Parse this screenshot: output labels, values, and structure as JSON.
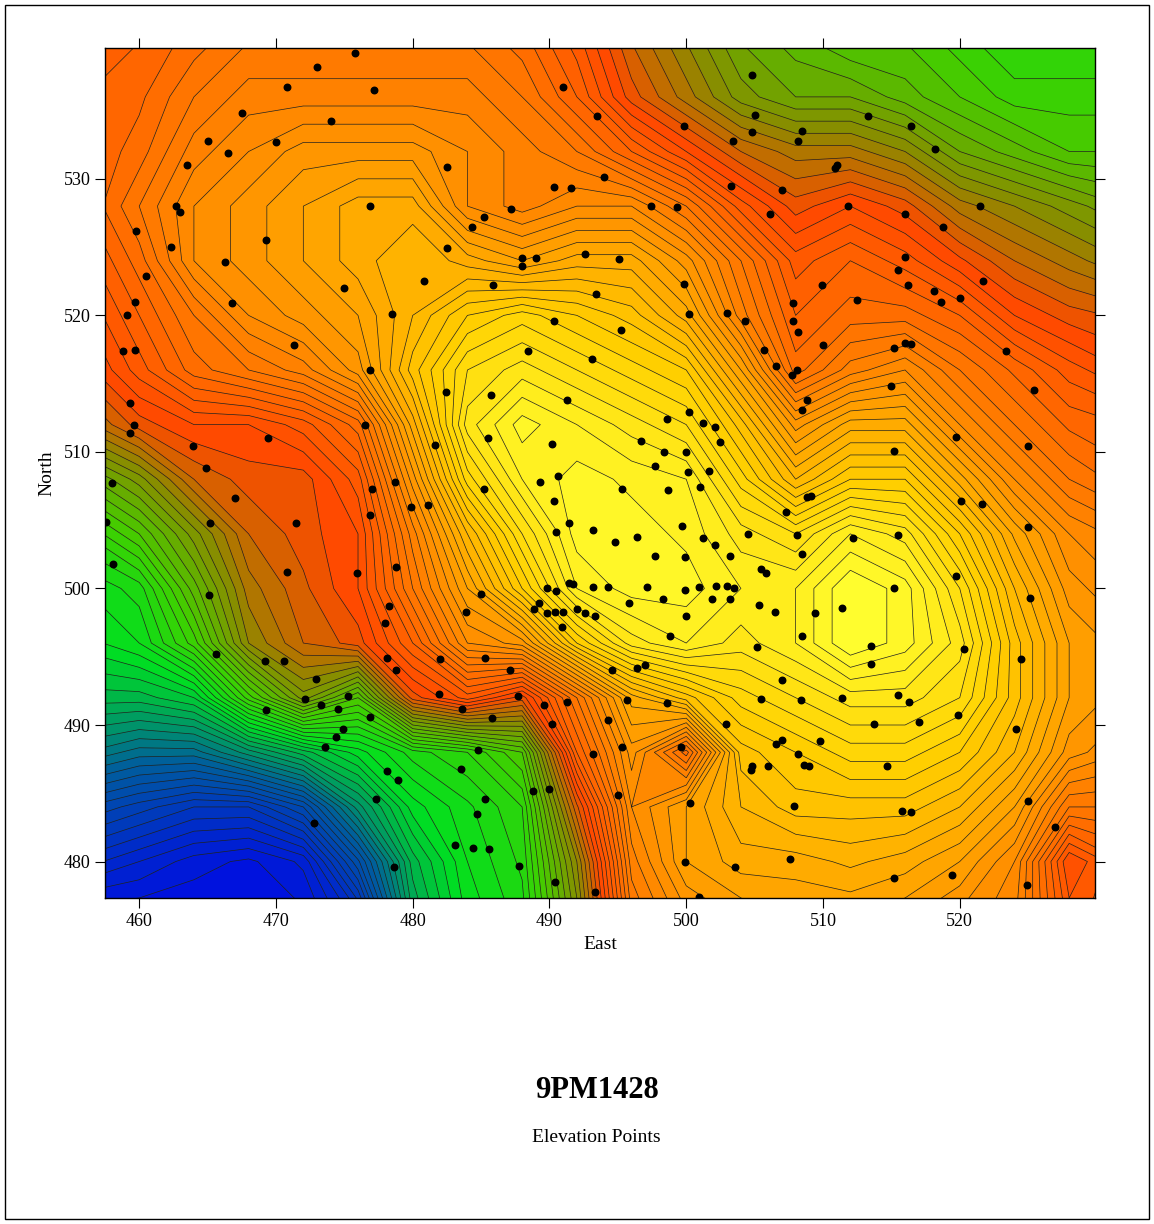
{
  "chart_data": {
    "type": "contour",
    "title": "9PM1428",
    "subtitle": "Elevation Points",
    "xlabel": "East",
    "ylabel": "North",
    "xlim": [
      457.5,
      529.9
    ],
    "ylim": [
      477.3,
      539.6
    ],
    "xticks": [
      460,
      470,
      480,
      490,
      500,
      510,
      520
    ],
    "yticks": [
      480,
      490,
      500,
      510,
      520,
      530
    ],
    "grid": false,
    "grid_x": [
      456,
      460,
      464,
      468,
      472,
      476,
      480,
      484,
      488,
      492,
      496,
      500,
      504,
      508,
      512,
      516,
      520,
      524,
      528,
      532
    ],
    "grid_y": [
      476,
      480,
      484,
      488,
      492,
      496,
      500,
      504,
      508,
      512,
      516,
      520,
      524,
      528,
      532,
      536,
      540
    ],
    "z": [
      [
        2,
        2,
        2,
        2,
        3,
        8,
        26,
        33,
        36,
        48,
        66,
        71,
        73,
        74,
        74,
        73,
        71,
        69,
        60,
        62
      ],
      [
        8,
        6,
        4,
        3,
        5,
        15,
        28,
        34,
        37,
        50,
        68,
        74,
        76,
        76,
        77,
        76,
        74,
        70,
        58,
        62
      ],
      [
        14,
        12,
        10,
        10,
        14,
        24,
        32,
        35,
        38,
        55,
        70,
        74,
        78,
        80,
        80,
        80,
        78,
        74,
        66,
        66
      ],
      [
        22,
        20,
        20,
        24,
        28,
        32,
        36,
        38,
        42,
        62,
        72,
        64,
        80,
        82,
        84,
        84,
        82,
        78,
        72,
        70
      ],
      [
        28,
        28,
        30,
        40,
        48,
        42,
        56,
        60,
        56,
        66,
        76,
        80,
        84,
        86,
        88,
        88,
        86,
        80,
        74,
        72
      ],
      [
        32,
        34,
        40,
        50,
        54,
        56,
        62,
        70,
        72,
        82,
        88,
        90,
        88,
        90,
        94,
        92,
        88,
        80,
        74,
        72
      ],
      [
        34,
        36,
        44,
        52,
        55,
        58,
        66,
        74,
        82,
        90,
        92,
        92,
        90,
        90,
        94,
        92,
        86,
        78,
        72,
        70
      ],
      [
        38,
        42,
        48,
        54,
        56,
        58,
        68,
        78,
        86,
        92,
        92,
        91,
        88,
        86,
        90,
        88,
        82,
        75,
        70,
        68
      ],
      [
        44,
        48,
        54,
        56,
        56,
        60,
        72,
        84,
        90,
        92,
        91,
        90,
        84,
        78,
        82,
        82,
        76,
        70,
        66,
        64
      ],
      [
        52,
        56,
        58,
        58,
        60,
        64,
        76,
        88,
        92,
        90,
        88,
        86,
        80,
        72,
        76,
        76,
        70,
        66,
        63,
        62
      ],
      [
        56,
        60,
        64,
        66,
        68,
        72,
        80,
        86,
        88,
        86,
        84,
        82,
        74,
        64,
        68,
        70,
        66,
        63,
        60,
        58
      ],
      [
        58,
        62,
        66,
        70,
        72,
        74,
        78,
        82,
        84,
        82,
        80,
        76,
        68,
        62,
        64,
        64,
        62,
        58,
        56,
        55
      ],
      [
        60,
        64,
        70,
        72,
        74,
        76,
        78,
        76,
        74,
        76,
        76,
        72,
        66,
        60,
        62,
        60,
        57,
        54,
        52,
        50
      ],
      [
        62,
        66,
        70,
        72,
        74,
        76,
        76,
        70,
        68,
        70,
        70,
        66,
        60,
        56,
        58,
        56,
        52,
        50,
        48,
        46
      ],
      [
        62,
        64,
        68,
        70,
        72,
        72,
        72,
        70,
        68,
        66,
        62,
        58,
        54,
        52,
        52,
        50,
        46,
        44,
        42,
        42
      ],
      [
        62,
        63,
        66,
        68,
        68,
        68,
        68,
        68,
        66,
        62,
        56,
        52,
        48,
        46,
        46,
        44,
        42,
        40,
        40,
        40
      ],
      [
        62,
        62,
        64,
        66,
        66,
        66,
        66,
        66,
        64,
        60,
        54,
        50,
        46,
        44,
        42,
        42,
        40,
        38,
        38,
        38
      ]
    ],
    "points": [
      [
        475.8,
        539.2
      ],
      [
        473,
        538.2
      ],
      [
        477.2,
        536.5
      ],
      [
        470.8,
        536.7
      ],
      [
        467.5,
        534.8
      ],
      [
        474,
        534.2
      ],
      [
        465,
        532.8
      ],
      [
        470,
        532.7
      ],
      [
        466.5,
        531.9
      ],
      [
        463.5,
        531
      ],
      [
        491,
        536.7
      ],
      [
        493.5,
        534.6
      ],
      [
        504.8,
        537.6
      ],
      [
        505,
        534.7
      ],
      [
        504.8,
        533.4
      ],
      [
        503.4,
        532.8
      ],
      [
        499.8,
        533.9
      ],
      [
        508.5,
        533.5
      ],
      [
        508.2,
        532.8
      ],
      [
        513.3,
        534.6
      ],
      [
        516.4,
        533.9
      ],
      [
        518.2,
        532.2
      ],
      [
        511,
        531
      ],
      [
        510.9,
        530.8
      ],
      [
        482.5,
        530.9
      ],
      [
        490.3,
        529.4
      ],
      [
        491.6,
        529.3
      ],
      [
        494,
        530.1
      ],
      [
        497.4,
        528
      ],
      [
        499.3,
        527.9
      ],
      [
        503.3,
        529.5
      ],
      [
        507,
        529.2
      ],
      [
        506.1,
        527.4
      ],
      [
        511.8,
        528
      ],
      [
        516,
        527.4
      ],
      [
        518.8,
        526.5
      ],
      [
        521.5,
        528
      ],
      [
        462.7,
        528
      ],
      [
        463,
        527.6
      ],
      [
        476.9,
        528
      ],
      [
        485.2,
        527.2
      ],
      [
        484.3,
        526.5
      ],
      [
        487.2,
        527.8
      ],
      [
        459.8,
        526.2
      ],
      [
        462.3,
        525
      ],
      [
        466.3,
        523.9
      ],
      [
        460.5,
        522.9
      ],
      [
        469.3,
        525.5
      ],
      [
        482.5,
        524.9
      ],
      [
        488,
        524.2
      ],
      [
        489,
        524.2
      ],
      [
        488,
        523.6
      ],
      [
        492.6,
        524.5
      ],
      [
        495.1,
        524.1
      ],
      [
        485.9,
        522.2
      ],
      [
        480.8,
        522.5
      ],
      [
        475,
        522
      ],
      [
        459.7,
        521
      ],
      [
        466.8,
        520.9
      ],
      [
        459.1,
        520
      ],
      [
        478.5,
        520.1
      ],
      [
        493.4,
        521.6
      ],
      [
        499.8,
        522.3
      ],
      [
        500.2,
        520.1
      ],
      [
        503,
        520.2
      ],
      [
        504.3,
        519.6
      ],
      [
        490.3,
        519.6
      ],
      [
        495.2,
        518.9
      ],
      [
        507.8,
        520.9
      ],
      [
        509.9,
        522.2
      ],
      [
        512.5,
        521.1
      ],
      [
        516.2,
        522.2
      ],
      [
        518.1,
        521.8
      ],
      [
        520,
        521.3
      ],
      [
        518.6,
        521
      ],
      [
        521.7,
        522.5
      ],
      [
        516,
        524.3
      ],
      [
        515.5,
        523.3
      ],
      [
        471.3,
        517.8
      ],
      [
        459.7,
        517.5
      ],
      [
        458.8,
        517.4
      ],
      [
        488.4,
        517.4
      ],
      [
        493.1,
        516.8
      ],
      [
        505.7,
        517.5
      ],
      [
        507.8,
        519.6
      ],
      [
        508.2,
        518.8
      ],
      [
        510,
        517.8
      ],
      [
        506.6,
        516.3
      ],
      [
        507.7,
        515.6
      ],
      [
        508.1,
        516
      ],
      [
        515.2,
        517.6
      ],
      [
        516,
        518
      ],
      [
        516.4,
        517.9
      ],
      [
        523.4,
        517.4
      ],
      [
        476.9,
        516
      ],
      [
        482.4,
        514.4
      ],
      [
        485.7,
        514.2
      ],
      [
        491.3,
        513.8
      ],
      [
        515,
        514.8
      ],
      [
        525.4,
        514.5
      ],
      [
        508.8,
        513.8
      ],
      [
        508.5,
        513.1
      ],
      [
        459.3,
        513.6
      ],
      [
        459.6,
        512
      ],
      [
        476.5,
        512
      ],
      [
        498.6,
        512.4
      ],
      [
        500.2,
        512.9
      ],
      [
        501.2,
        512.1
      ],
      [
        502.1,
        511.8
      ],
      [
        459.3,
        511.4
      ],
      [
        463.9,
        510.4
      ],
      [
        469.4,
        511
      ],
      [
        481.6,
        510.5
      ],
      [
        485.5,
        511
      ],
      [
        490.2,
        510.6
      ],
      [
        496.7,
        510.8
      ],
      [
        498.4,
        510
      ],
      [
        500,
        510
      ],
      [
        502.5,
        510.7
      ],
      [
        515.2,
        510.1
      ],
      [
        519.7,
        511.1
      ],
      [
        525,
        510.4
      ],
      [
        458,
        507.7
      ],
      [
        464.9,
        508.8
      ],
      [
        477,
        507.3
      ],
      [
        478.7,
        507.8
      ],
      [
        485.2,
        507.3
      ],
      [
        489.3,
        507.8
      ],
      [
        490.6,
        508.2
      ],
      [
        497.7,
        509
      ],
      [
        500.1,
        508.5
      ],
      [
        501.7,
        508.6
      ],
      [
        509.1,
        506.8
      ],
      [
        508.8,
        506.7
      ],
      [
        520.1,
        506.4
      ],
      [
        521.6,
        506.2
      ],
      [
        467,
        506.6
      ],
      [
        479.9,
        506
      ],
      [
        481.1,
        506.1
      ],
      [
        476.9,
        505.4
      ],
      [
        490.3,
        506.4
      ],
      [
        495.3,
        507.3
      ],
      [
        498.7,
        507.2
      ],
      [
        501,
        507.4
      ],
      [
        507.3,
        505.6
      ],
      [
        465.2,
        504.8
      ],
      [
        471.5,
        504.8
      ],
      [
        490.5,
        504.1
      ],
      [
        491.4,
        504.8
      ],
      [
        493.2,
        504.3
      ],
      [
        494.8,
        503.4
      ],
      [
        496.4,
        503.8
      ],
      [
        499.7,
        504.6
      ],
      [
        501.2,
        503.7
      ],
      [
        502.1,
        503.2
      ],
      [
        504.5,
        504
      ],
      [
        508.1,
        503.9
      ],
      [
        512.2,
        503.7
      ],
      [
        515.5,
        503.9
      ],
      [
        525,
        504.5
      ],
      [
        457.6,
        504.9
      ],
      [
        458.1,
        501.8
      ],
      [
        470.8,
        501.2
      ],
      [
        475.9,
        501.1
      ],
      [
        478.8,
        501.6
      ],
      [
        497.7,
        502.4
      ],
      [
        499.9,
        502.3
      ],
      [
        503.2,
        502.4
      ],
      [
        505.5,
        501.4
      ],
      [
        505.8,
        501.1
      ],
      [
        508.5,
        502.5
      ],
      [
        519.7,
        500.9
      ],
      [
        465.1,
        499.5
      ],
      [
        485,
        499.6
      ],
      [
        489.8,
        500
      ],
      [
        490.5,
        499.8
      ],
      [
        491.4,
        500.4
      ],
      [
        491.7,
        500.3
      ],
      [
        493.2,
        500.1
      ],
      [
        494.3,
        500.1
      ],
      [
        497.1,
        500.1
      ],
      [
        499.9,
        499.9
      ],
      [
        500.9,
        500.1
      ],
      [
        502.2,
        500.2
      ],
      [
        503,
        500.2
      ],
      [
        503.5,
        500
      ],
      [
        515.2,
        500
      ],
      [
        525.1,
        499.3
      ],
      [
        478.3,
        498.7
      ],
      [
        483.9,
        498.3
      ],
      [
        489.2,
        498.9
      ],
      [
        488.9,
        498.5
      ],
      [
        489.8,
        498.2
      ],
      [
        490.4,
        498.3
      ],
      [
        491,
        498.3
      ],
      [
        492,
        498.5
      ],
      [
        492.6,
        498.2
      ],
      [
        493.3,
        498
      ],
      [
        495.8,
        498.9
      ],
      [
        498.3,
        499.2
      ],
      [
        500,
        498
      ],
      [
        501.9,
        499.2
      ],
      [
        503.2,
        499.2
      ],
      [
        505.3,
        498.8
      ],
      [
        506.5,
        498.3
      ],
      [
        509.4,
        498.2
      ],
      [
        511.4,
        498.6
      ],
      [
        478,
        497.5
      ],
      [
        490.9,
        497.2
      ],
      [
        498.8,
        496.5
      ],
      [
        508.5,
        496.5
      ],
      [
        513.5,
        495.8
      ],
      [
        520.3,
        495.6
      ],
      [
        465.6,
        495.2
      ],
      [
        482,
        494.8
      ],
      [
        485.3,
        494.9
      ],
      [
        469.2,
        494.7
      ],
      [
        470.6,
        494.7
      ],
      [
        478.1,
        494.9
      ],
      [
        478.8,
        494
      ],
      [
        487.1,
        494
      ],
      [
        494.6,
        494
      ],
      [
        496.4,
        494.2
      ],
      [
        497,
        494.4
      ],
      [
        505.2,
        495.7
      ],
      [
        513.5,
        494.5
      ],
      [
        524.5,
        494.8
      ],
      [
        507,
        493.3
      ],
      [
        472.9,
        493.4
      ],
      [
        472.1,
        491.9
      ],
      [
        473.3,
        491.5
      ],
      [
        474.5,
        491.2
      ],
      [
        475.3,
        492.1
      ],
      [
        481.9,
        492.3
      ],
      [
        487.7,
        492.1
      ],
      [
        489.6,
        491.5
      ],
      [
        491.3,
        491.7
      ],
      [
        495.7,
        491.8
      ],
      [
        498.6,
        491.6
      ],
      [
        505.5,
        491.9
      ],
      [
        508.4,
        491.8
      ],
      [
        511.4,
        492
      ],
      [
        515.5,
        492.2
      ],
      [
        516.3,
        491.7
      ],
      [
        469.3,
        491.1
      ],
      [
        474.9,
        489.7
      ],
      [
        474.4,
        489.1
      ],
      [
        473.6,
        488.4
      ],
      [
        476.9,
        490.6
      ],
      [
        483.6,
        491.2
      ],
      [
        485.8,
        490.5
      ],
      [
        490.2,
        490.1
      ],
      [
        494.3,
        490.4
      ],
      [
        502.9,
        490.1
      ],
      [
        507,
        488.9
      ],
      [
        509.8,
        488.8
      ],
      [
        513.7,
        490.1
      ],
      [
        517,
        490.2
      ],
      [
        519.9,
        490.7
      ],
      [
        524.1,
        489.7
      ],
      [
        484.8,
        488.2
      ],
      [
        483.5,
        486.8
      ],
      [
        493.2,
        487.9
      ],
      [
        495.3,
        488.4
      ],
      [
        499.6,
        488.4
      ],
      [
        504.8,
        487
      ],
      [
        506.6,
        488.6
      ],
      [
        508.2,
        487.9
      ],
      [
        508.6,
        487.1
      ],
      [
        509,
        487
      ],
      [
        514.7,
        487
      ],
      [
        478.1,
        486.6
      ],
      [
        477.3,
        484.6
      ],
      [
        478.9,
        486
      ],
      [
        485.3,
        484.6
      ],
      [
        484.7,
        483.5
      ],
      [
        488.8,
        485.2
      ],
      [
        490,
        485.3
      ],
      [
        495,
        484.9
      ],
      [
        500.3,
        484.3
      ],
      [
        504.7,
        486.7
      ],
      [
        506,
        487
      ],
      [
        507.9,
        484.1
      ],
      [
        515.8,
        483.7
      ],
      [
        516.4,
        483.6
      ],
      [
        525,
        484.4
      ],
      [
        472.8,
        482.8
      ],
      [
        483.1,
        481.2
      ],
      [
        484.4,
        481
      ],
      [
        485.6,
        480.9
      ],
      [
        527,
        482.5
      ],
      [
        478.6,
        479.6
      ],
      [
        487.8,
        479.7
      ],
      [
        490.4,
        478.5
      ],
      [
        493.3,
        477.8
      ],
      [
        499.9,
        480
      ],
      [
        500.9,
        477.4
      ],
      [
        503.6,
        479.6
      ],
      [
        507.6,
        480.2
      ],
      [
        515.2,
        478.8
      ],
      [
        519.4,
        479
      ],
      [
        524.9,
        478.3
      ]
    ]
  }
}
